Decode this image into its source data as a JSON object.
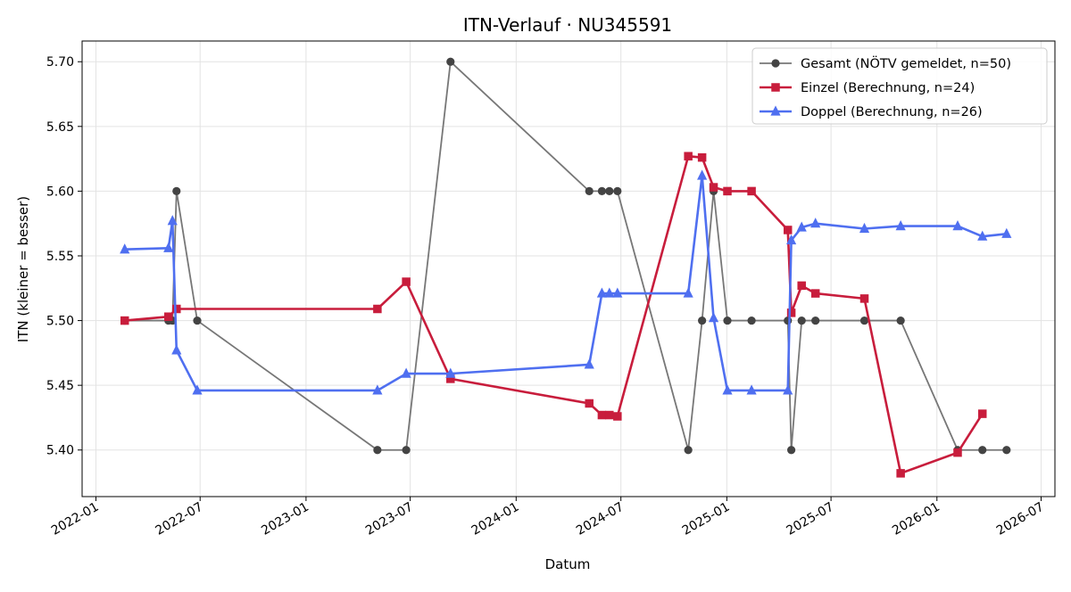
{
  "chart_data": {
    "type": "line",
    "title": "ITN-Verlauf · NU345591",
    "xlabel": "Datum",
    "ylabel": "ITN  (kleiner = besser)",
    "x_axis_type": "date",
    "xlim": [
      "2021-12-08",
      "2026-07-25"
    ],
    "ylim": [
      5.364,
      5.716
    ],
    "x_ticks": [
      "2022-01-01",
      "2022-07-01",
      "2023-01-01",
      "2023-07-01",
      "2024-01-01",
      "2024-07-01",
      "2025-01-01",
      "2025-07-01",
      "2026-01-01",
      "2026-07-01"
    ],
    "x_tick_labels": [
      "2022-01",
      "2022-07",
      "2023-01",
      "2023-07",
      "2024-01",
      "2024-07",
      "2025-01",
      "2025-07",
      "2026-01",
      "2026-07"
    ],
    "y_ticks": [
      5.4,
      5.45,
      5.5,
      5.55,
      5.6,
      5.65,
      5.7
    ],
    "y_tick_labels": [
      "5.40",
      "5.45",
      "5.50",
      "5.55",
      "5.60",
      "5.65",
      "5.70"
    ],
    "grid": true,
    "legend_position": "top-right",
    "series": [
      {
        "name": "Gesamt (NÖTV gemeldet, n=50)",
        "color": "#777777",
        "marker": "circle",
        "marker_color": "#444444",
        "points": [
          {
            "x": "2022-02-20",
            "y": 5.5
          },
          {
            "x": "2022-05-07",
            "y": 5.5
          },
          {
            "x": "2022-05-14",
            "y": 5.5
          },
          {
            "x": "2022-05-21",
            "y": 5.6
          },
          {
            "x": "2022-06-26",
            "y": 5.5
          },
          {
            "x": "2023-05-05",
            "y": 5.4
          },
          {
            "x": "2023-06-24",
            "y": 5.4
          },
          {
            "x": "2023-09-09",
            "y": 5.7
          },
          {
            "x": "2024-05-07",
            "y": 5.6
          },
          {
            "x": "2024-05-29",
            "y": 5.6
          },
          {
            "x": "2024-06-11",
            "y": 5.6
          },
          {
            "x": "2024-06-25",
            "y": 5.6
          },
          {
            "x": "2024-10-26",
            "y": 5.4
          },
          {
            "x": "2024-11-19",
            "y": 5.5
          },
          {
            "x": "2024-12-09",
            "y": 5.6
          },
          {
            "x": "2025-01-02",
            "y": 5.5
          },
          {
            "x": "2025-02-13",
            "y": 5.5
          },
          {
            "x": "2025-04-17",
            "y": 5.5
          },
          {
            "x": "2025-04-23",
            "y": 5.4
          },
          {
            "x": "2025-05-11",
            "y": 5.5
          },
          {
            "x": "2025-06-04",
            "y": 5.5
          },
          {
            "x": "2025-08-28",
            "y": 5.5
          },
          {
            "x": "2025-10-30",
            "y": 5.5
          },
          {
            "x": "2026-02-06",
            "y": 5.4
          },
          {
            "x": "2026-03-21",
            "y": 5.4
          },
          {
            "x": "2026-05-02",
            "y": 5.4
          }
        ]
      },
      {
        "name": "Einzel (Berechnung, n=24)",
        "color": "#c81d3c",
        "marker": "square",
        "points": [
          {
            "x": "2022-02-20",
            "y": 5.5
          },
          {
            "x": "2022-05-07",
            "y": 5.503
          },
          {
            "x": "2022-05-21",
            "y": 5.509
          },
          {
            "x": "2023-05-05",
            "y": 5.509
          },
          {
            "x": "2023-06-24",
            "y": 5.53
          },
          {
            "x": "2023-09-09",
            "y": 5.455
          },
          {
            "x": "2024-05-07",
            "y": 5.436
          },
          {
            "x": "2024-05-29",
            "y": 5.427
          },
          {
            "x": "2024-06-11",
            "y": 5.427
          },
          {
            "x": "2024-06-25",
            "y": 5.426
          },
          {
            "x": "2024-10-26",
            "y": 5.627
          },
          {
            "x": "2024-11-19",
            "y": 5.626
          },
          {
            "x": "2024-12-09",
            "y": 5.603
          },
          {
            "x": "2025-01-02",
            "y": 5.6
          },
          {
            "x": "2025-02-13",
            "y": 5.6
          },
          {
            "x": "2025-04-17",
            "y": 5.57
          },
          {
            "x": "2025-04-23",
            "y": 5.506
          },
          {
            "x": "2025-05-11",
            "y": 5.527
          },
          {
            "x": "2025-06-04",
            "y": 5.521
          },
          {
            "x": "2025-08-28",
            "y": 5.517
          },
          {
            "x": "2025-10-30",
            "y": 5.382
          },
          {
            "x": "2026-02-06",
            "y": 5.398
          },
          {
            "x": "2026-03-21",
            "y": 5.428
          }
        ]
      },
      {
        "name": "Doppel (Berechnung, n=26)",
        "color": "#4f6ff0",
        "marker": "triangle",
        "points": [
          {
            "x": "2022-02-20",
            "y": 5.555
          },
          {
            "x": "2022-05-07",
            "y": 5.556
          },
          {
            "x": "2022-05-14",
            "y": 5.577
          },
          {
            "x": "2022-05-21",
            "y": 5.477
          },
          {
            "x": "2022-06-26",
            "y": 5.446
          },
          {
            "x": "2023-05-05",
            "y": 5.446
          },
          {
            "x": "2023-06-24",
            "y": 5.459
          },
          {
            "x": "2023-09-09",
            "y": 5.459
          },
          {
            "x": "2024-05-07",
            "y": 5.466
          },
          {
            "x": "2024-05-29",
            "y": 5.521
          },
          {
            "x": "2024-06-11",
            "y": 5.521
          },
          {
            "x": "2024-06-25",
            "y": 5.521
          },
          {
            "x": "2024-10-26",
            "y": 5.521
          },
          {
            "x": "2024-11-19",
            "y": 5.612
          },
          {
            "x": "2024-12-09",
            "y": 5.502
          },
          {
            "x": "2025-01-02",
            "y": 5.446
          },
          {
            "x": "2025-02-13",
            "y": 5.446
          },
          {
            "x": "2025-04-17",
            "y": 5.446
          },
          {
            "x": "2025-04-23",
            "y": 5.562
          },
          {
            "x": "2025-05-11",
            "y": 5.572
          },
          {
            "x": "2025-06-04",
            "y": 5.575
          },
          {
            "x": "2025-08-28",
            "y": 5.571
          },
          {
            "x": "2025-10-30",
            "y": 5.573
          },
          {
            "x": "2026-02-06",
            "y": 5.573
          },
          {
            "x": "2026-03-21",
            "y": 5.565
          },
          {
            "x": "2026-05-02",
            "y": 5.567
          }
        ]
      }
    ]
  }
}
